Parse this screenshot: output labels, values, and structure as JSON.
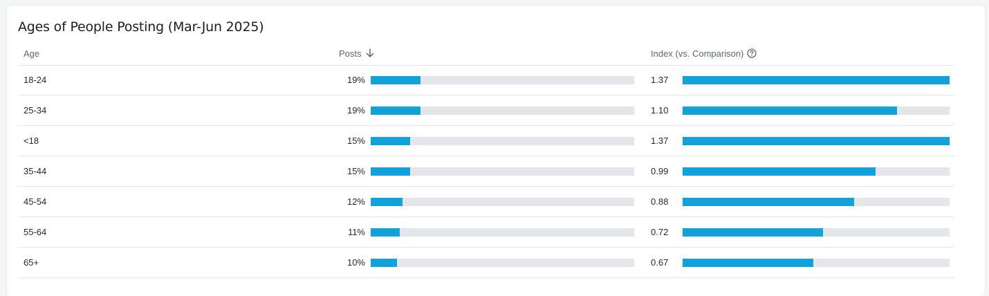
{
  "title": "Ages of People Posting (Mar-Jun 2025)",
  "colors": {
    "bar": "#13a1dc",
    "track": "#e4e6e9"
  },
  "header": {
    "age": "Age",
    "posts": "Posts",
    "posts_sort_icon": "arrow-down-icon",
    "index": "Index (vs. Comparison)",
    "index_help_icon": "help-circle-icon"
  },
  "chart_data": {
    "type": "table",
    "title": "Ages of People Posting (Mar-Jun 2025)",
    "columns": [
      "Age",
      "Posts",
      "Index (vs. Comparison)"
    ],
    "posts_max": 100,
    "index_max": 1.37,
    "rows": [
      {
        "age": "18-24",
        "posts": 19,
        "posts_label": "19%",
        "index": 1.37,
        "index_label": "1.37"
      },
      {
        "age": "25-34",
        "posts": 19,
        "posts_label": "19%",
        "index": 1.1,
        "index_label": "1.10"
      },
      {
        "age": "<18",
        "posts": 15,
        "posts_label": "15%",
        "index": 1.37,
        "index_label": "1.37"
      },
      {
        "age": "35-44",
        "posts": 15,
        "posts_label": "15%",
        "index": 0.99,
        "index_label": "0.99"
      },
      {
        "age": "45-54",
        "posts": 12,
        "posts_label": "12%",
        "index": 0.88,
        "index_label": "0.88"
      },
      {
        "age": "55-64",
        "posts": 11,
        "posts_label": "11%",
        "index": 0.72,
        "index_label": "0.72"
      },
      {
        "age": "65+",
        "posts": 10,
        "posts_label": "10%",
        "index": 0.67,
        "index_label": "0.67"
      }
    ]
  }
}
